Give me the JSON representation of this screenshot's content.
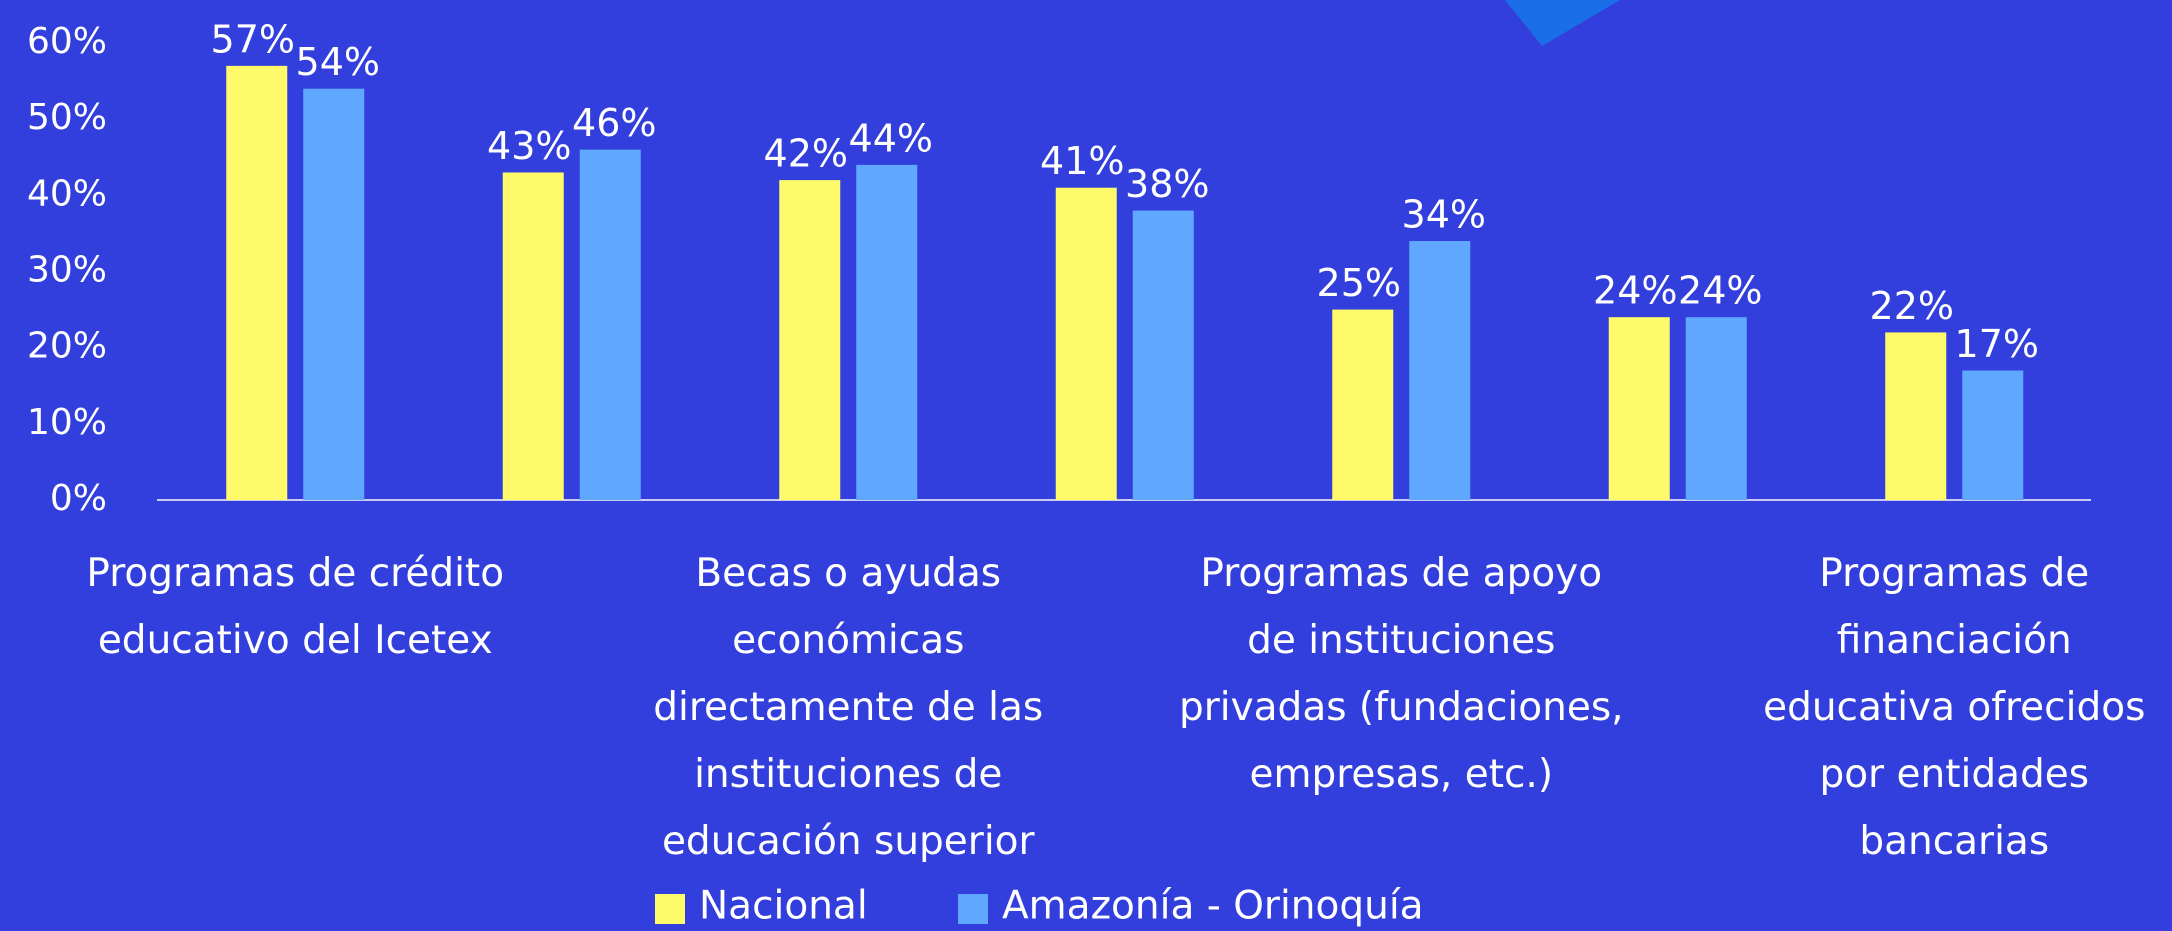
{
  "chart_data": {
    "type": "bar",
    "categories": [
      "Programas de crédito educativo del Icetex",
      null,
      "Becas o ayudas económicas directamente de las instituciones de educación superior",
      null,
      "Programas de apoyo de instituciones privadas (fundaciones, empresas, etc.)",
      null,
      "Programas de financiación educativa ofrecidos por entidades bancarias"
    ],
    "series": [
      {
        "name": "Nacional",
        "color": "#fffa6a",
        "values": [
          57,
          43,
          42,
          41,
          25,
          24,
          22
        ],
        "value_labels": [
          "57%",
          "43%",
          "42%",
          "41%",
          "25%",
          "24%",
          "22%"
        ]
      },
      {
        "name": "Amazonía - Orinoquía",
        "color": "#60a8ff",
        "values": [
          54,
          46,
          44,
          38,
          34,
          24,
          17
        ],
        "value_labels": [
          "54%",
          "46%",
          "44%",
          "38%",
          "34%",
          "24%",
          "17%"
        ]
      }
    ],
    "ylim": [
      0,
      60
    ],
    "yticks": [
      {
        "value": 0,
        "label": "0%"
      },
      {
        "value": 10,
        "label": "10%"
      },
      {
        "value": 20,
        "label": "20%"
      },
      {
        "value": 30,
        "label": "30%"
      },
      {
        "value": 40,
        "label": "40%"
      },
      {
        "value": 50,
        "label": "50%"
      },
      {
        "value": 60,
        "label": "60%"
      }
    ],
    "grid": false
  }
}
